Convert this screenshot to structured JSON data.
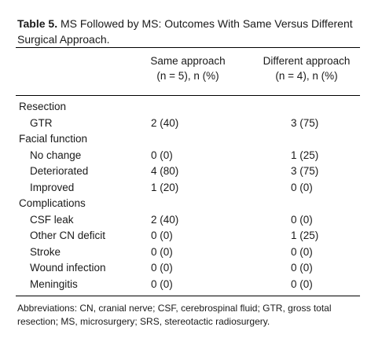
{
  "caption": {
    "label": "Table 5.",
    "text": " MS Followed by MS: Outcomes With Same Versus Different Surgical Approach."
  },
  "columns": {
    "same": {
      "line1": "Same approach",
      "line2": "(n = 5), n (%)"
    },
    "different": {
      "line1": "Different approach",
      "line2": "(n = 4), n (%)"
    }
  },
  "rows": [
    {
      "label": "Resection",
      "same": "",
      "different": "",
      "kind": "section"
    },
    {
      "label": "GTR",
      "same": "2 (40)",
      "different": "3 (75)",
      "kind": "item"
    },
    {
      "label": "Facial function",
      "same": "",
      "different": "",
      "kind": "section"
    },
    {
      "label": "No change",
      "same": "0 (0)",
      "different": "1 (25)",
      "kind": "item"
    },
    {
      "label": "Deteriorated",
      "same": "4 (80)",
      "different": "3 (75)",
      "kind": "item"
    },
    {
      "label": "Improved",
      "same": "1 (20)",
      "different": "0 (0)",
      "kind": "item"
    },
    {
      "label": "Complications",
      "same": "",
      "different": "",
      "kind": "section"
    },
    {
      "label": "CSF leak",
      "same": "2 (40)",
      "different": "0 (0)",
      "kind": "item"
    },
    {
      "label": "Other CN deficit",
      "same": "0 (0)",
      "different": "1 (25)",
      "kind": "item"
    },
    {
      "label": "Stroke",
      "same": "0 (0)",
      "different": "0 (0)",
      "kind": "item"
    },
    {
      "label": "Wound infection",
      "same": "0 (0)",
      "different": "0 (0)",
      "kind": "item"
    },
    {
      "label": "Meningitis",
      "same": "0 (0)",
      "different": "0 (0)",
      "kind": "item"
    }
  ],
  "footnote": "Abbreviations: CN, cranial nerve; CSF, cerebrospinal fluid; GTR, gross total resection; MS, microsurgery; SRS, stereotactic radiosurgery."
}
